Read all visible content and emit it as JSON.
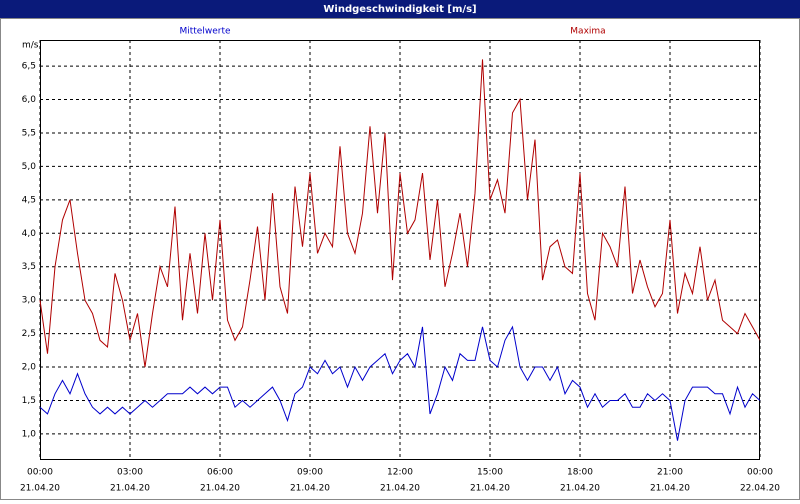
{
  "chart_data": {
    "type": "line",
    "title": "Windgeschwindigkeit [m/s]",
    "y_unit": "m/s",
    "x": [
      0,
      0.25,
      0.5,
      0.75,
      1,
      1.25,
      1.5,
      1.75,
      2,
      2.25,
      2.5,
      2.75,
      3,
      3.25,
      3.5,
      3.75,
      4,
      4.25,
      4.5,
      4.75,
      5,
      5.25,
      5.5,
      5.75,
      6,
      6.25,
      6.5,
      6.75,
      7,
      7.25,
      7.5,
      7.75,
      8,
      8.25,
      8.5,
      8.75,
      9,
      9.25,
      9.5,
      9.75,
      10,
      10.25,
      10.5,
      10.75,
      11,
      11.25,
      11.5,
      11.75,
      12,
      12.25,
      12.5,
      12.75,
      13,
      13.25,
      13.5,
      13.75,
      14,
      14.25,
      14.5,
      14.75,
      15,
      15.25,
      15.5,
      15.75,
      16,
      16.25,
      16.5,
      16.75,
      17,
      17.25,
      17.5,
      17.75,
      18,
      18.25,
      18.5,
      18.75,
      19,
      19.25,
      19.5,
      19.75,
      20,
      20.25,
      20.5,
      20.75,
      21,
      21.25,
      21.5,
      21.75,
      22,
      22.25,
      22.5,
      22.75,
      23,
      23.25,
      23.5,
      23.75,
      24
    ],
    "series": [
      {
        "name": "Mittelwerte",
        "color": "#0000cc",
        "values": [
          1.4,
          1.3,
          1.6,
          1.8,
          1.6,
          1.9,
          1.6,
          1.4,
          1.3,
          1.4,
          1.3,
          1.4,
          1.3,
          1.4,
          1.5,
          1.4,
          1.5,
          1.6,
          1.6,
          1.6,
          1.7,
          1.6,
          1.7,
          1.6,
          1.7,
          1.7,
          1.4,
          1.5,
          1.4,
          1.5,
          1.6,
          1.7,
          1.5,
          1.2,
          1.6,
          1.7,
          2.0,
          1.9,
          2.1,
          1.9,
          2.0,
          1.7,
          2.0,
          1.8,
          2.0,
          2.1,
          2.2,
          1.9,
          2.1,
          2.2,
          2.0,
          2.6,
          1.3,
          1.6,
          2.0,
          1.8,
          2.2,
          2.1,
          2.1,
          2.6,
          2.1,
          2.0,
          2.4,
          2.6,
          2.0,
          1.8,
          2.0,
          2.0,
          1.8,
          2.0,
          1.6,
          1.8,
          1.7,
          1.4,
          1.6,
          1.4,
          1.5,
          1.5,
          1.6,
          1.4,
          1.4,
          1.6,
          1.5,
          1.6,
          1.5,
          0.9,
          1.5,
          1.7,
          1.7,
          1.7,
          1.6,
          1.6,
          1.3,
          1.7,
          1.4,
          1.6,
          1.5
        ]
      },
      {
        "name": "Maxima",
        "color": "#b00000",
        "values": [
          3.0,
          2.2,
          3.5,
          4.2,
          4.5,
          3.7,
          3.0,
          2.8,
          2.4,
          2.3,
          3.4,
          3.0,
          2.4,
          2.8,
          2.0,
          2.8,
          3.5,
          3.2,
          4.4,
          2.7,
          3.7,
          2.8,
          4.0,
          3.0,
          4.2,
          2.7,
          2.4,
          2.6,
          3.3,
          4.1,
          3.0,
          4.6,
          3.2,
          2.8,
          4.7,
          3.8,
          4.9,
          3.7,
          4.0,
          3.8,
          5.3,
          4.0,
          3.7,
          4.3,
          5.6,
          4.3,
          5.5,
          3.3,
          4.9,
          4.0,
          4.2,
          4.9,
          3.6,
          4.5,
          3.2,
          3.7,
          4.3,
          3.5,
          4.6,
          6.6,
          4.5,
          4.8,
          4.3,
          5.8,
          6.0,
          4.5,
          5.4,
          3.3,
          3.8,
          3.9,
          3.5,
          3.4,
          4.9,
          3.1,
          2.7,
          4.0,
          3.8,
          3.5,
          4.7,
          3.1,
          3.6,
          3.2,
          2.9,
          3.1,
          4.2,
          2.8,
          3.4,
          3.1,
          3.8,
          3.0,
          3.3,
          2.7,
          2.6,
          2.5,
          2.8,
          2.6,
          2.4
        ]
      }
    ],
    "xlim": [
      0,
      24
    ],
    "xticks": [
      {
        "value": 0,
        "label": "00:00"
      },
      {
        "value": 3,
        "label": "03:00"
      },
      {
        "value": 6,
        "label": "06:00"
      },
      {
        "value": 9,
        "label": "09:00"
      },
      {
        "value": 12,
        "label": "12:00"
      },
      {
        "value": 15,
        "label": "15:00"
      },
      {
        "value": 18,
        "label": "18:00"
      },
      {
        "value": 21,
        "label": "21:00"
      },
      {
        "value": 24,
        "label": "00:00"
      }
    ],
    "xtick_dates": [
      "21.04.20",
      "21.04.20",
      "21.04.20",
      "21.04.20",
      "21.04.20",
      "21.04.20",
      "21.04.20",
      "21.04.20",
      "22.04.20"
    ],
    "ylim": [
      0.61,
      6.89
    ],
    "yticks": [
      {
        "value": 1,
        "label": "1,0"
      },
      {
        "value": 1.5,
        "label": "1,5"
      },
      {
        "value": 2,
        "label": "2,0"
      },
      {
        "value": 2.5,
        "label": "2,5"
      },
      {
        "value": 3,
        "label": "3,0"
      },
      {
        "value": 3.5,
        "label": "3,5"
      },
      {
        "value": 4,
        "label": "4,0"
      },
      {
        "value": 4.5,
        "label": "4,5"
      },
      {
        "value": 5,
        "label": "5,0"
      },
      {
        "value": 5.5,
        "label": "5,5"
      },
      {
        "value": 6,
        "label": "6,0"
      },
      {
        "value": 6.5,
        "label": "6,5"
      }
    ],
    "grid": true
  }
}
